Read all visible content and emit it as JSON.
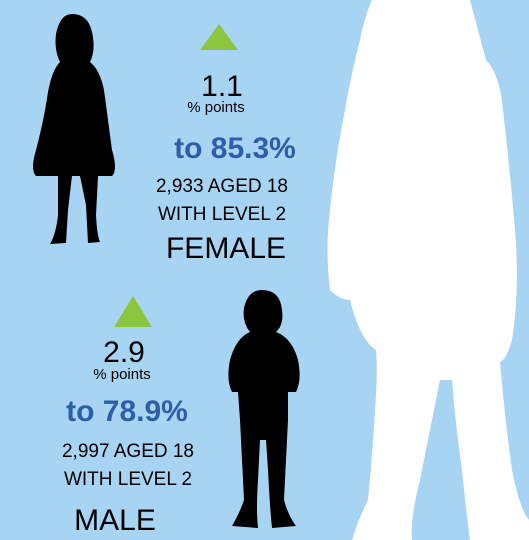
{
  "female": {
    "change": "1.1",
    "unit": "% points",
    "rate": "to 85.3%",
    "count": "2,933 AGED 18",
    "qualification": "WITH LEVEL 2",
    "label": "FEMALE"
  },
  "male": {
    "change": "2.9",
    "unit": "% points",
    "rate": "to 78.9%",
    "count": "2,997 AGED 18",
    "qualification": "WITH LEVEL 2",
    "label": "MALE"
  }
}
